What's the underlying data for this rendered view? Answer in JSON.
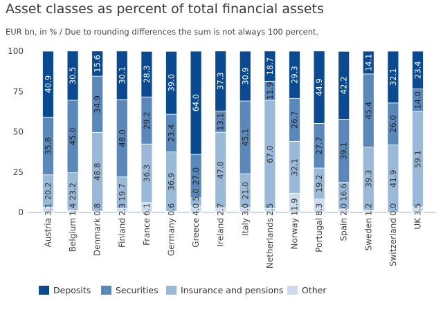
{
  "chart_data": {
    "type": "bar",
    "stacked": true,
    "title": "Asset classes as percent of total financial assets",
    "subtitle": "EUR bn, in % / Due to rounding differences the sum is not always 100 percent.",
    "xlabel": "",
    "ylabel": "",
    "ylim": [
      0,
      100
    ],
    "yticks": [
      0,
      25,
      50,
      75,
      100
    ],
    "grid": false,
    "legend_placement": "bottom",
    "categories": [
      "Austria",
      "Belgium",
      "Denmark",
      "Finland",
      "France",
      "Germany",
      "Greece",
      "Ireland",
      "Italy",
      "Netherlands",
      "Norway",
      "Portugal",
      "Spain",
      "Sweden",
      "Switzerland",
      "UK"
    ],
    "series": [
      {
        "name": "Other",
        "color": "#cddcec",
        "label_color": "#333333",
        "values": [
          3.1,
          1.4,
          0.8,
          2.3,
          6.1,
          0.6,
          4.0,
          2.7,
          3.0,
          2.5,
          11.9,
          8.3,
          2.0,
          1.2,
          0.0,
          3.5
        ]
      },
      {
        "name": "Insurance and pensions",
        "color": "#9ab8d8",
        "label_color": "#333333",
        "values": [
          20.2,
          23.2,
          48.8,
          19.7,
          36.3,
          36.9,
          5.0,
          47.0,
          21.0,
          67.0,
          32.1,
          19.2,
          16.6,
          39.3,
          41.9,
          59.1
        ]
      },
      {
        "name": "Securities",
        "color": "#5a88bb",
        "label_color": "#222222",
        "values": [
          35.8,
          45.0,
          34.9,
          48.0,
          29.2,
          23.4,
          27.0,
          13.1,
          45.1,
          11.9,
          26.7,
          27.7,
          39.1,
          45.4,
          26.0,
          14.0
        ]
      },
      {
        "name": "Deposits",
        "color": "#0b4a90",
        "label_color": "#ffffff",
        "values": [
          40.9,
          30.5,
          15.6,
          30.1,
          28.3,
          39.0,
          64.0,
          37.3,
          30.9,
          18.7,
          29.3,
          44.9,
          42.2,
          14.1,
          32.1,
          23.4
        ]
      }
    ],
    "legend_order": [
      "Deposits",
      "Securities",
      "Insurance and pensions",
      "Other"
    ]
  }
}
